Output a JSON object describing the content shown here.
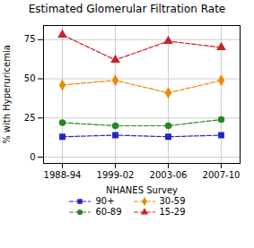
{
  "chart_data": {
    "type": "line",
    "title": "Estimated Glomerular Filtration Rate",
    "xlabel": "NHANES Survey",
    "ylabel": "% with Hyperuricemia",
    "categories": [
      "1988-94",
      "1999-02",
      "2003-06",
      "2007-10"
    ],
    "series": [
      {
        "name": "90+",
        "color": "#2222cc",
        "marker": "square",
        "line_style": "dashed",
        "values": [
          13,
          14,
          13,
          14
        ]
      },
      {
        "name": "60-89",
        "color": "#228822",
        "marker": "circle",
        "line_style": "dashed",
        "values": [
          22,
          20,
          20,
          24
        ]
      },
      {
        "name": "30-59",
        "color": "#ee8800",
        "marker": "diamond",
        "line_style": "dashed",
        "values": [
          46,
          49,
          41,
          49
        ]
      },
      {
        "name": "15-29",
        "color": "#cc2222",
        "marker": "triangle",
        "line_style": "dashed",
        "values": [
          78,
          62,
          74,
          70
        ]
      }
    ],
    "ylim": [
      -4,
      84
    ],
    "yticks": [
      0,
      25,
      50,
      75
    ],
    "grid": true,
    "legend": "bottom"
  }
}
